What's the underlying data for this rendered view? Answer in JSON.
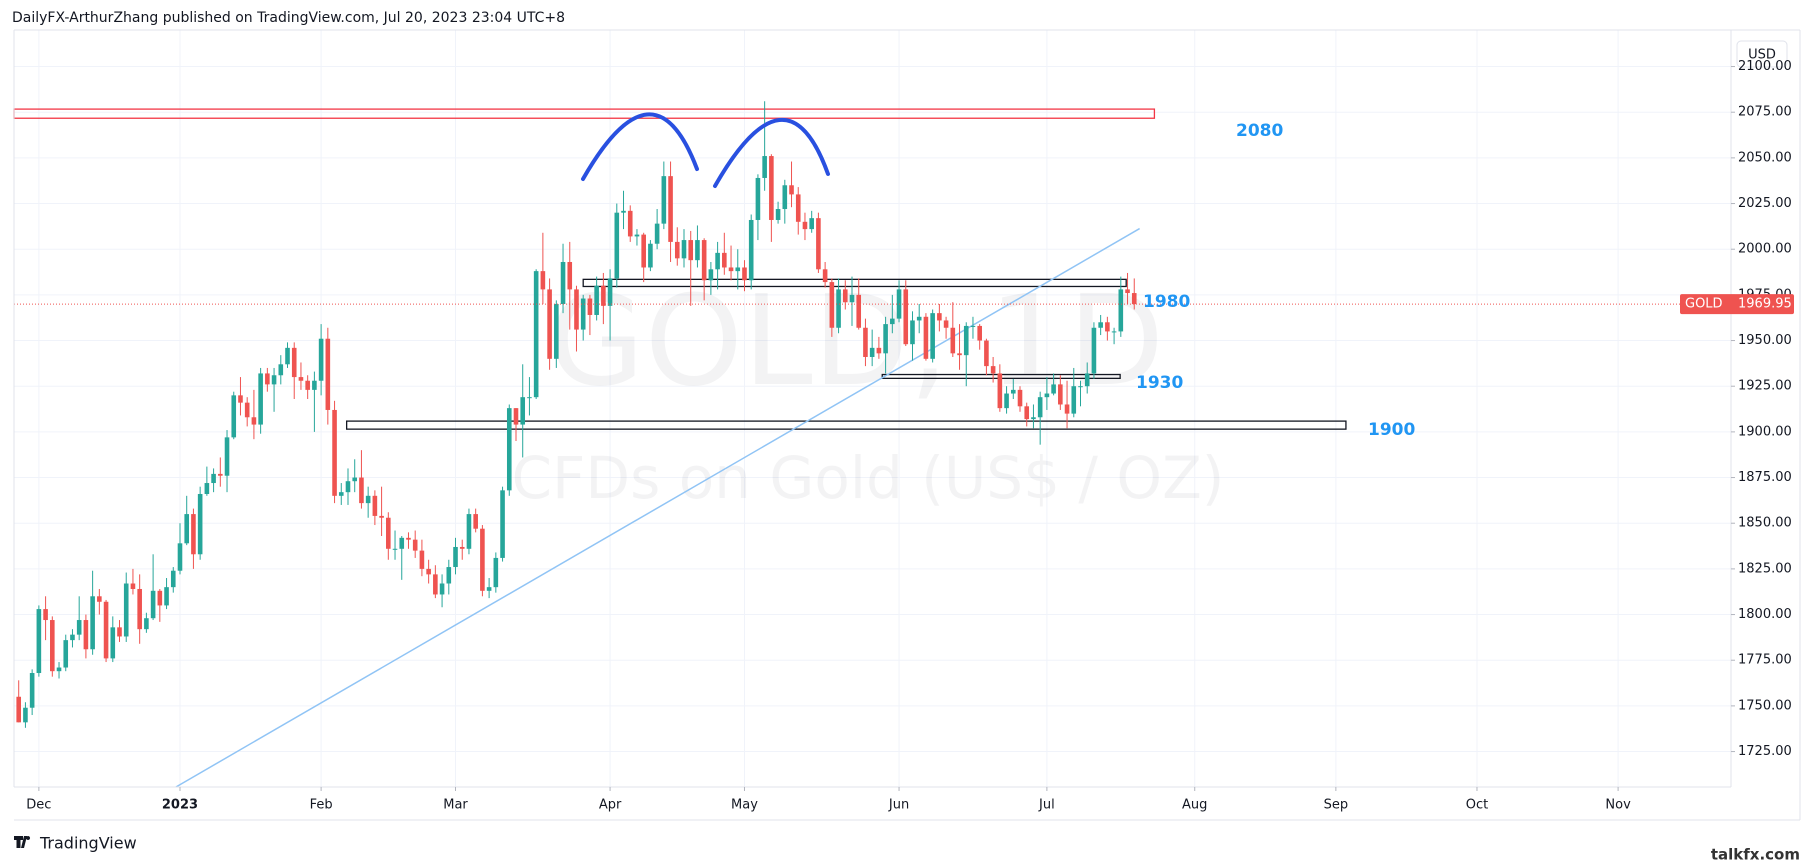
{
  "chart_data": {
    "type": "candlestick",
    "header": "DailyFX-ArthurZhang published on TradingView.com, Jul 20, 2023 23:04 UTC+8",
    "currency": "USD",
    "symbol": "GOLD",
    "last_price": 1969.95,
    "watermark": [
      "GOLD, 1D",
      "CFDs on Gold (US$ / OZ)"
    ],
    "brand": "TradingView",
    "site": "talkfx.com",
    "up_color": "#26a69a",
    "down_color": "#ef5350",
    "grid": true,
    "xlim": [
      -0.7,
      254.8
    ],
    "ylim": [
      1705.6,
      2120
    ],
    "xticks": [
      {
        "value": 3,
        "label": "Dec"
      },
      {
        "value": 24,
        "label": "2023"
      },
      {
        "value": 45,
        "label": "Feb"
      },
      {
        "value": 65,
        "label": "Mar"
      },
      {
        "value": 88,
        "label": "Apr"
      },
      {
        "value": 108,
        "label": "May"
      },
      {
        "value": 131,
        "label": "Jun"
      },
      {
        "value": 153,
        "label": "Jul"
      },
      {
        "value": 175,
        "label": "Aug"
      },
      {
        "value": 196,
        "label": "Sep"
      },
      {
        "value": 217,
        "label": "Oct"
      },
      {
        "value": 238,
        "label": "Nov"
      }
    ],
    "yticks": [
      {
        "value": 1725,
        "label": "1725.00"
      },
      {
        "value": 1750,
        "label": "1750.00"
      },
      {
        "value": 1775,
        "label": "1775.00"
      },
      {
        "value": 1800,
        "label": "1800.00"
      },
      {
        "value": 1825,
        "label": "1825.00"
      },
      {
        "value": 1850,
        "label": "1850.00"
      },
      {
        "value": 1875,
        "label": "1875.00"
      },
      {
        "value": 1900,
        "label": "1900.00"
      },
      {
        "value": 1925,
        "label": "1925.00"
      },
      {
        "value": 1950,
        "label": "1950.00"
      },
      {
        "value": 1975,
        "label": "1975.00"
      },
      {
        "value": 2000,
        "label": "2000.00"
      },
      {
        "value": 2025,
        "label": "2025.00"
      },
      {
        "value": 2050,
        "label": "2050.00"
      },
      {
        "value": 2075,
        "label": "2075.00"
      },
      {
        "value": 2100,
        "label": "2100.00"
      }
    ],
    "zones": [
      {
        "label": "2080",
        "color": "#f23645",
        "low": 2071.7,
        "high": 2076.7,
        "start": -0.7,
        "end": 169
      },
      {
        "label": "1980",
        "color": "#131722",
        "low": 1979.6,
        "high": 1983.5,
        "start": 84,
        "end": 164.8
      },
      {
        "label": "1930",
        "color": "#131722",
        "low": 1929.3,
        "high": 1931.4,
        "start": 128.5,
        "end": 163.9
      },
      {
        "label": "1900",
        "color": "#131722",
        "low": 1901.5,
        "high": 1905.9,
        "start": 48.8,
        "end": 197.5
      }
    ],
    "trendline": {
      "x": [
        23.4,
        166.8
      ],
      "y": [
        1705.6,
        2011.3
      ],
      "color": "#90c4f5"
    },
    "ohlc": [
      [
        1755,
        1764,
        1741,
        1741
      ],
      [
        1741,
        1752,
        1738,
        1749
      ],
      [
        1749,
        1770,
        1745,
        1768
      ],
      [
        1768,
        1805,
        1766,
        1803
      ],
      [
        1803,
        1810,
        1786,
        1797
      ],
      [
        1797,
        1799,
        1766,
        1769
      ],
      [
        1769,
        1774,
        1765,
        1771
      ],
      [
        1771,
        1789,
        1769,
        1786
      ],
      [
        1786,
        1792,
        1782,
        1789
      ],
      [
        1789,
        1810,
        1786,
        1797
      ],
      [
        1797,
        1800,
        1776,
        1781
      ],
      [
        1781,
        1824,
        1778,
        1810
      ],
      [
        1810,
        1814,
        1800,
        1807
      ],
      [
        1807,
        1808,
        1774,
        1776
      ],
      [
        1776,
        1799,
        1774,
        1793
      ],
      [
        1793,
        1797,
        1785,
        1788
      ],
      [
        1788,
        1823,
        1785,
        1817
      ],
      [
        1817,
        1825,
        1811,
        1814
      ],
      [
        1814,
        1822,
        1784,
        1792
      ],
      [
        1792,
        1801,
        1790,
        1798
      ],
      [
        1798,
        1833,
        1797,
        1813
      ],
      [
        1813,
        1814,
        1796,
        1805
      ],
      [
        1805,
        1820,
        1803,
        1815
      ],
      [
        1815,
        1826,
        1812,
        1824
      ],
      [
        1824,
        1850,
        1822,
        1839
      ],
      [
        1839,
        1865,
        1838,
        1855
      ],
      [
        1855,
        1858,
        1825,
        1833
      ],
      [
        1833,
        1870,
        1830,
        1866
      ],
      [
        1866,
        1881,
        1865,
        1872
      ],
      [
        1872,
        1880,
        1867,
        1877
      ],
      [
        1877,
        1886,
        1870,
        1876
      ],
      [
        1876,
        1901,
        1867,
        1897
      ],
      [
        1897,
        1922,
        1896,
        1920
      ],
      [
        1920,
        1930,
        1909,
        1916
      ],
      [
        1916,
        1919,
        1903,
        1908
      ],
      [
        1908,
        1923,
        1896,
        1904
      ],
      [
        1904,
        1935,
        1899,
        1932
      ],
      [
        1932,
        1935,
        1922,
        1926
      ],
      [
        1926,
        1935,
        1911,
        1931
      ],
      [
        1931,
        1942,
        1926,
        1937
      ],
      [
        1937,
        1949,
        1935,
        1946
      ],
      [
        1946,
        1949,
        1918,
        1930
      ],
      [
        1930,
        1938,
        1923,
        1928
      ],
      [
        1928,
        1931,
        1918,
        1923
      ],
      [
        1923,
        1933,
        1900,
        1928
      ],
      [
        1928,
        1959,
        1920,
        1951
      ],
      [
        1951,
        1957,
        1904,
        1912
      ],
      [
        1912,
        1917,
        1861,
        1865
      ],
      [
        1865,
        1872,
        1860,
        1867
      ],
      [
        1867,
        1880,
        1860,
        1873
      ],
      [
        1873,
        1885,
        1867,
        1875
      ],
      [
        1875,
        1890,
        1858,
        1861
      ],
      [
        1861,
        1870,
        1853,
        1865
      ],
      [
        1865,
        1868,
        1849,
        1854
      ],
      [
        1854,
        1870,
        1843,
        1853
      ],
      [
        1853,
        1856,
        1830,
        1836
      ],
      [
        1836,
        1846,
        1830,
        1836
      ],
      [
        1836,
        1843,
        1819,
        1842
      ],
      [
        1842,
        1845,
        1836,
        1841
      ],
      [
        1841,
        1846,
        1831,
        1835
      ],
      [
        1835,
        1841,
        1821,
        1825
      ],
      [
        1825,
        1830,
        1817,
        1822
      ],
      [
        1822,
        1827,
        1809,
        1811
      ],
      [
        1811,
        1822,
        1804,
        1817
      ],
      [
        1817,
        1830,
        1811,
        1826
      ],
      [
        1826,
        1842,
        1822,
        1837
      ],
      [
        1837,
        1841,
        1830,
        1836
      ],
      [
        1836,
        1858,
        1833,
        1855
      ],
      [
        1855,
        1858,
        1845,
        1847
      ],
      [
        1847,
        1849,
        1810,
        1813
      ],
      [
        1813,
        1820,
        1809,
        1815
      ],
      [
        1815,
        1834,
        1812,
        1831
      ],
      [
        1831,
        1870,
        1829,
        1868
      ],
      [
        1868,
        1915,
        1865,
        1913
      ],
      [
        1913,
        1913,
        1895,
        1904
      ],
      [
        1904,
        1937,
        1886,
        1919
      ],
      [
        1919,
        1930,
        1909,
        1919
      ],
      [
        1919,
        1989,
        1918,
        1988
      ],
      [
        1988,
        2009,
        1970,
        1978
      ],
      [
        1978,
        1984,
        1934,
        1940
      ],
      [
        1940,
        1972,
        1935,
        1970
      ],
      [
        1970,
        2003,
        1965,
        1993
      ],
      [
        1993,
        2004,
        1956,
        1978
      ],
      [
        1978,
        1980,
        1944,
        1956
      ],
      [
        1956,
        1975,
        1950,
        1973
      ],
      [
        1973,
        1975,
        1953,
        1964
      ],
      [
        1964,
        1985,
        1961,
        1980
      ],
      [
        1980,
        1987,
        1959,
        1969
      ],
      [
        1969,
        1989,
        1950,
        1984
      ],
      [
        1984,
        2025,
        1979,
        2020
      ],
      [
        2020,
        2032,
        2011,
        2021
      ],
      [
        2021,
        2024,
        2004,
        2007
      ],
      [
        2007,
        2011,
        2002,
        2008
      ],
      [
        2008,
        2009,
        1982,
        1990
      ],
      [
        1990,
        2005,
        1988,
        2003
      ],
      [
        2003,
        2022,
        2000,
        2014
      ],
      [
        2014,
        2048,
        2011,
        2040
      ],
      [
        2040,
        2048,
        1993,
        2004
      ],
      [
        2004,
        2012,
        1991,
        1995
      ],
      [
        1995,
        2011,
        1990,
        2005
      ],
      [
        2005,
        2010,
        1969,
        1994
      ],
      [
        1994,
        2013,
        1990,
        2005
      ],
      [
        2005,
        2006,
        1972,
        1983
      ],
      [
        1983,
        1993,
        1975,
        1989
      ],
      [
        1989,
        2004,
        1978,
        1998
      ],
      [
        1998,
        2009,
        1986,
        1990
      ],
      [
        1990,
        2002,
        1983,
        1988
      ],
      [
        1988,
        2000,
        1978,
        1990
      ],
      [
        1990,
        1994,
        1977,
        1983
      ],
      [
        1983,
        2019,
        1978,
        2016
      ],
      [
        2016,
        2041,
        2005,
        2039
      ],
      [
        2039,
        2081,
        2032,
        2051
      ],
      [
        2051,
        2052,
        2004,
        2016
      ],
      [
        2016,
        2026,
        2014,
        2022
      ],
      [
        2022,
        2038,
        2014,
        2035
      ],
      [
        2035,
        2048,
        2023,
        2030
      ],
      [
        2030,
        2034,
        2008,
        2015
      ],
      [
        2015,
        2020,
        2005,
        2011
      ],
      [
        2011,
        2021,
        2009,
        2017
      ],
      [
        2017,
        2020,
        1987,
        1989
      ],
      [
        1989,
        1993,
        1979,
        1982
      ],
      [
        1982,
        1984,
        1952,
        1957
      ],
      [
        1957,
        1984,
        1954,
        1978
      ],
      [
        1978,
        1983,
        1967,
        1971
      ],
      [
        1971,
        1985,
        1958,
        1975
      ],
      [
        1975,
        1984,
        1956,
        1957
      ],
      [
        1957,
        1962,
        1936,
        1941
      ],
      [
        1941,
        1956,
        1936,
        1946
      ],
      [
        1946,
        1952,
        1940,
        1943
      ],
      [
        1943,
        1963,
        1932,
        1959
      ],
      [
        1959,
        1975,
        1954,
        1962
      ],
      [
        1962,
        1983,
        1960,
        1978
      ],
      [
        1978,
        1983,
        1947,
        1948
      ],
      [
        1948,
        1966,
        1939,
        1961
      ],
      [
        1961,
        1970,
        1954,
        1963
      ],
      [
        1963,
        1965,
        1939,
        1940
      ],
      [
        1940,
        1967,
        1938,
        1965
      ],
      [
        1965,
        1970,
        1955,
        1961
      ],
      [
        1961,
        1963,
        1951,
        1957
      ],
      [
        1957,
        1971,
        1941,
        1943
      ],
      [
        1943,
        1959,
        1934,
        1942
      ],
      [
        1942,
        1960,
        1925,
        1958
      ],
      [
        1958,
        1963,
        1951,
        1958
      ],
      [
        1958,
        1959,
        1945,
        1950
      ],
      [
        1950,
        1951,
        1931,
        1936
      ],
      [
        1936,
        1941,
        1927,
        1932
      ],
      [
        1932,
        1937,
        1911,
        1913
      ],
      [
        1913,
        1925,
        1910,
        1921
      ],
      [
        1921,
        1929,
        1918,
        1923
      ],
      [
        1923,
        1925,
        1911,
        1914
      ],
      [
        1914,
        1916,
        1903,
        1907
      ],
      [
        1907,
        1915,
        1902,
        1908
      ],
      [
        1908,
        1922,
        1893,
        1919
      ],
      [
        1919,
        1930,
        1912,
        1921
      ],
      [
        1921,
        1932,
        1920,
        1926
      ],
      [
        1926,
        1931,
        1912,
        1915
      ],
      [
        1915,
        1928,
        1902,
        1910
      ],
      [
        1910,
        1935,
        1908,
        1925
      ],
      [
        1925,
        1928,
        1914,
        1925
      ],
      [
        1925,
        1938,
        1921,
        1932
      ],
      [
        1932,
        1960,
        1929,
        1957
      ],
      [
        1957,
        1964,
        1953,
        1960
      ],
      [
        1960,
        1963,
        1950,
        1955
      ],
      [
        1955,
        1957,
        1948,
        1955
      ],
      [
        1955,
        1985,
        1952,
        1978
      ],
      [
        1978,
        1987,
        1970,
        1976
      ],
      [
        1976,
        1984,
        1967,
        1969.95
      ]
    ]
  }
}
